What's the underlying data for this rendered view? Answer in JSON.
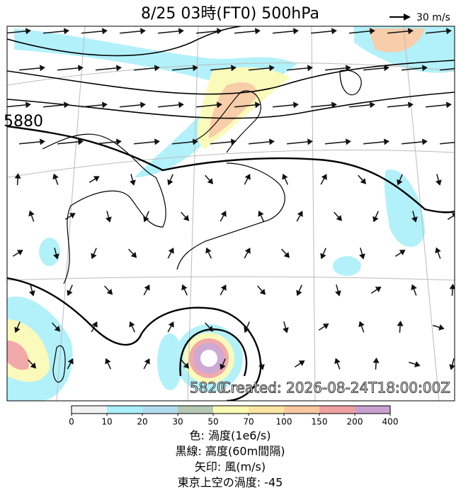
{
  "title": "8/25  03時(FT0)     500hPa",
  "wind_legend": "30 m/s",
  "contour_labels": [
    "5880",
    "5820"
  ],
  "created": "Created: 2026-08-24T18:00:00Z",
  "colorbar": {
    "ticks": [
      "0",
      "10",
      "20",
      "30",
      "50",
      "70",
      "100",
      "150",
      "200",
      "400"
    ],
    "colors": [
      "#f2f2f2",
      "#aaf0fa",
      "#b4dcf0",
      "#b4c8b4",
      "#fafab4",
      "#fae6a0",
      "#f8c8a0",
      "#f0a0a0",
      "#c8a0d0"
    ]
  },
  "captions": [
    "色: 渦度(1e6/s)",
    "黒線: 高度(60m間隔)",
    "矢印: 風(m/s)",
    "東京上空の渦度: -45"
  ]
}
